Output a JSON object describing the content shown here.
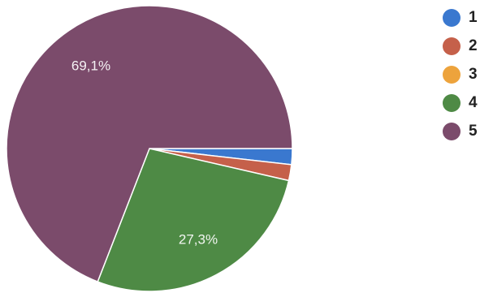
{
  "chart_data": {
    "type": "pie",
    "labels": [
      "1",
      "2",
      "3",
      "4",
      "5"
    ],
    "values": [
      1.8,
      1.8,
      0,
      27.3,
      69.1
    ],
    "colors": [
      "#3a78cf",
      "#c5604a",
      "#eda33c",
      "#4e8a45",
      "#7b4b6b"
    ],
    "data_labels": [
      "",
      "",
      "",
      "27,3%",
      "69,1%"
    ],
    "start_angle_deg": 90,
    "direction": "clockwise",
    "legend_position": "top-right"
  }
}
